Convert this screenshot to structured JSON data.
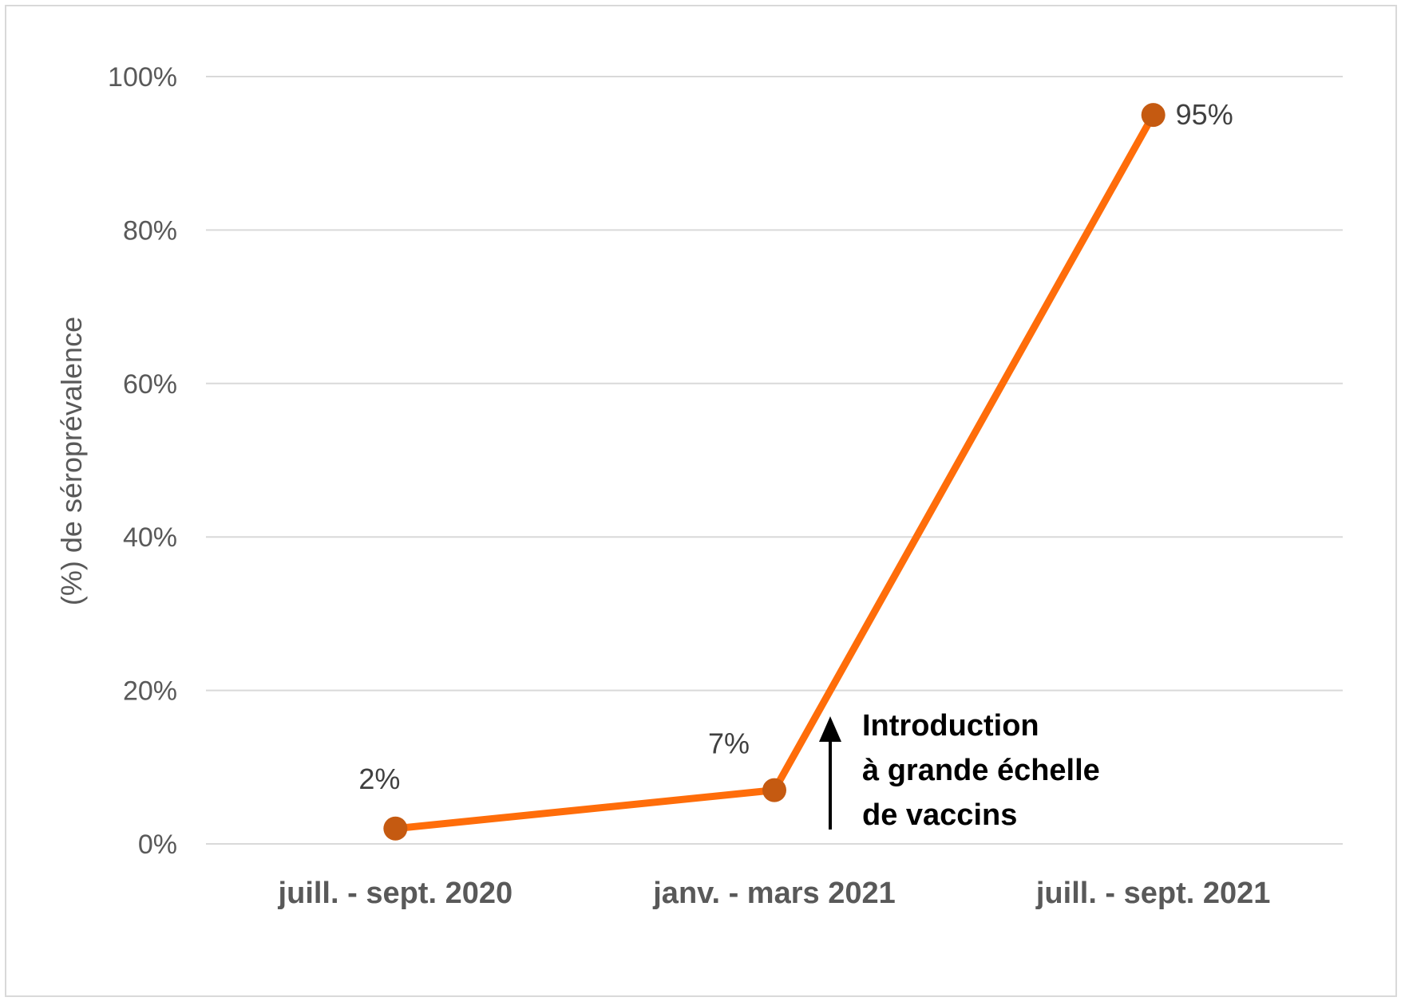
{
  "chart_data": {
    "type": "line",
    "title": "",
    "xlabel": "",
    "ylabel": "(%) de séroprévalence",
    "categories": [
      "juill. - sept. 2020",
      "janv. - mars 2021",
      "juill. - sept. 2021"
    ],
    "series": [
      {
        "values": [
          2,
          7,
          95
        ],
        "data_labels": [
          "2%",
          "7%",
          "95%"
        ],
        "line_color": "#ff6d0a",
        "marker_color": "#c55a11"
      }
    ],
    "ylim": [
      0,
      100
    ],
    "yticks": [
      0,
      20,
      40,
      60,
      80,
      100
    ],
    "ytick_labels": [
      "0%",
      "20%",
      "40%",
      "60%",
      "80%",
      "100%"
    ],
    "grid": true,
    "gridline_color": "#d9d9d9",
    "legend": "none",
    "annotation": {
      "lines": [
        "Introduction",
        "à grande échelle",
        "de vaccins"
      ],
      "arrow": "up",
      "position": "between janv. - mars 2021 and juill. - sept. 2021"
    }
  }
}
